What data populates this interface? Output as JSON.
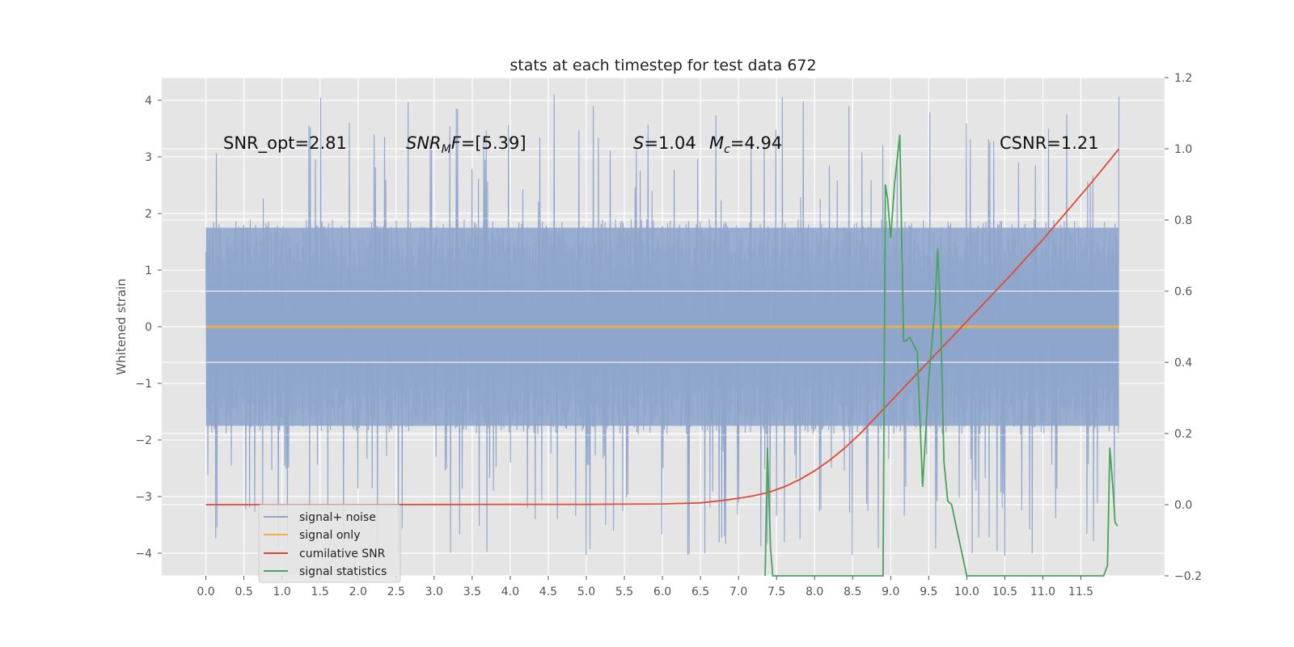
{
  "chart_data": {
    "type": "line",
    "title": "stats at each timestep for test data 672",
    "xlabel": "",
    "ylabel": "Whitened strain",
    "xlim": [
      -0.58,
      12.6
    ],
    "ylim": [
      -4.4,
      4.4
    ],
    "y2lim": [
      -0.2,
      1.2
    ],
    "xticks": [
      "0.0",
      "0.5",
      "1.0",
      "1.5",
      "2.0",
      "2.5",
      "3.0",
      "3.5",
      "4.0",
      "4.5",
      "5.0",
      "5.5",
      "6.0",
      "6.5",
      "7.0",
      "7.5",
      "8.0",
      "8.5",
      "9.0",
      "9.5",
      "10.0",
      "10.5",
      "11.0",
      "11.5"
    ],
    "yticks": [
      "4",
      "3",
      "2",
      "1",
      "0",
      "−1",
      "−2",
      "−3",
      "−4"
    ],
    "y2ticks": [
      "1.2",
      "1.0",
      "0.8",
      "0.6",
      "0.4",
      "0.2",
      "0.0",
      "−0.2"
    ],
    "grid": true,
    "legend_position": "lower-left",
    "colors": {
      "background": "#e5e5e5",
      "grid": "#ffffff",
      "noise": "#8fa6cc",
      "signal": "#f0b13f",
      "csnr": "#e24a33",
      "stats": "#4aa35a"
    },
    "annotations": {
      "snr_opt": "SNR_opt=2.81",
      "snr_mf_prefix": "SNR",
      "snr_mf_sub": "M",
      "snr_mf_rest": "F=[5.39]",
      "s_var": "S",
      "s_val": "=1.04",
      "mc_var": "M",
      "mc_sub": "c",
      "mc_val": "=4.94",
      "csnr": "CSNR=1.21"
    },
    "series": [
      {
        "name": "signal+ noise",
        "axis": "left",
        "description_only": false,
        "x_range": [
          0.0,
          12.0
        ],
        "amplitude_typical": 1.9,
        "spikes_max": 4.1,
        "spikes_min": -4.05
      },
      {
        "name": "signal only",
        "axis": "left",
        "x": [
          0.0,
          12.0
        ],
        "y": [
          0.0,
          0.0
        ]
      },
      {
        "name": "cumilative SNR",
        "axis": "right",
        "x": [
          0.0,
          1.0,
          2.0,
          3.0,
          4.0,
          5.0,
          6.0,
          6.5,
          6.8,
          7.0,
          7.2,
          7.4,
          7.6,
          7.8,
          8.0,
          8.2,
          8.4,
          8.6,
          8.8,
          9.0,
          9.2,
          9.4,
          9.6,
          9.8,
          10.0,
          10.2,
          10.4,
          10.6,
          10.8,
          11.0,
          11.2,
          11.4,
          11.6,
          11.8,
          12.0
        ],
        "y": [
          0.0,
          0.0,
          0.0,
          0.0005,
          0.0008,
          0.001,
          0.002,
          0.005,
          0.012,
          0.018,
          0.025,
          0.035,
          0.05,
          0.07,
          0.095,
          0.125,
          0.16,
          0.2,
          0.245,
          0.29,
          0.335,
          0.38,
          0.425,
          0.47,
          0.515,
          0.56,
          0.605,
          0.65,
          0.698,
          0.745,
          0.795,
          0.845,
          0.895,
          0.947,
          1.0
        ]
      },
      {
        "name": "signal statistics",
        "axis": "right",
        "x": [
          7.35,
          7.38,
          7.42,
          7.45,
          8.9,
          8.93,
          8.96,
          9.0,
          9.05,
          9.12,
          9.17,
          9.2,
          9.25,
          9.3,
          9.35,
          9.42,
          9.5,
          9.58,
          9.62,
          9.66,
          9.7,
          9.75,
          9.8,
          9.9,
          10.0,
          11.8,
          11.85,
          11.88,
          11.92,
          11.95,
          11.98
        ],
        "y": [
          -0.2,
          0.16,
          -0.12,
          -0.2,
          -0.2,
          0.9,
          0.86,
          0.75,
          0.9,
          1.04,
          0.46,
          0.46,
          0.47,
          0.45,
          0.43,
          0.05,
          0.35,
          0.55,
          0.72,
          0.5,
          0.12,
          0.01,
          0.0,
          -0.1,
          -0.2,
          -0.2,
          -0.17,
          0.16,
          0.05,
          -0.05,
          -0.06
        ]
      }
    ]
  }
}
